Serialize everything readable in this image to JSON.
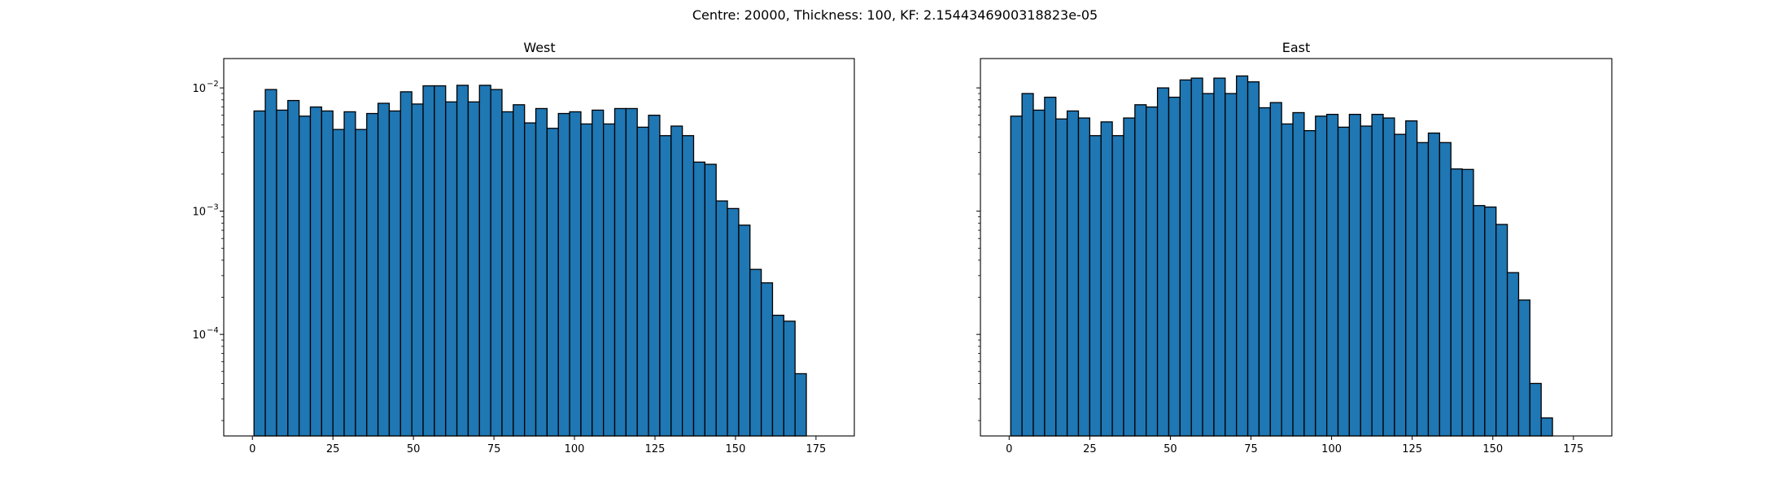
{
  "figure": {
    "suptitle": "Centre: 20000, Thickness: 100, KF: 2.1544346900318823e-05"
  },
  "chart_data": [
    {
      "type": "bar",
      "subtype": "histogram",
      "title": "West",
      "xlabel": "",
      "ylabel": "",
      "yscale": "log",
      "xlim": [
        -8.9,
        186.9
      ],
      "ylim": [
        1.5e-05,
        0.0173
      ],
      "xticks": [
        0,
        25,
        50,
        75,
        100,
        125,
        150,
        175
      ],
      "yticks": [
        {
          "value": 0.0001,
          "base": "10",
          "exp": "−4"
        },
        {
          "value": 0.001,
          "base": "10",
          "exp": "−3"
        },
        {
          "value": 0.01,
          "base": "10",
          "exp": "−2"
        }
      ],
      "bin_start": 0.5,
      "bin_width": 3.5,
      "values": [
        0.0065,
        0.0097,
        0.0066,
        0.0079,
        0.0059,
        0.007,
        0.0065,
        0.0046,
        0.0064,
        0.0046,
        0.0062,
        0.0075,
        0.0065,
        0.0093,
        0.0074,
        0.0104,
        0.0104,
        0.0077,
        0.0105,
        0.0077,
        0.0105,
        0.0097,
        0.0064,
        0.0073,
        0.0052,
        0.0068,
        0.0047,
        0.0062,
        0.0064,
        0.0051,
        0.0066,
        0.0051,
        0.0068,
        0.0068,
        0.0048,
        0.006,
        0.0041,
        0.0049,
        0.0041,
        0.0025,
        0.0024,
        0.00121,
        0.00105,
        0.00077,
        0.000337,
        0.000262,
        0.000143,
        0.000128,
        4.8e-05
      ],
      "grid": false,
      "legend": "none"
    },
    {
      "type": "bar",
      "subtype": "histogram",
      "title": "East",
      "xlabel": "",
      "ylabel": "",
      "yscale": "log",
      "xlim": [
        -8.9,
        186.9
      ],
      "ylim": [
        1.5e-05,
        0.0173
      ],
      "xticks": [
        0,
        25,
        50,
        75,
        100,
        125,
        150,
        175
      ],
      "yticks": [
        {
          "value": 0.0001,
          "base": "",
          "exp": ""
        },
        {
          "value": 0.001,
          "base": "",
          "exp": ""
        },
        {
          "value": 0.01,
          "base": "",
          "exp": ""
        }
      ],
      "bin_start": 0.5,
      "bin_width": 3.5,
      "values": [
        0.0059,
        0.009,
        0.0066,
        0.0084,
        0.0056,
        0.0065,
        0.0057,
        0.0041,
        0.0053,
        0.0041,
        0.0057,
        0.0073,
        0.007,
        0.01,
        0.0084,
        0.0116,
        0.012,
        0.009,
        0.012,
        0.009,
        0.0125,
        0.0112,
        0.0069,
        0.0076,
        0.0051,
        0.0063,
        0.0045,
        0.0059,
        0.0061,
        0.0048,
        0.0061,
        0.0049,
        0.0061,
        0.0057,
        0.0042,
        0.0054,
        0.0036,
        0.0043,
        0.0036,
        0.0022,
        0.00218,
        0.00111,
        0.00108,
        0.00078,
        0.000317,
        0.00019,
        4e-05,
        2.1e-05
      ],
      "grid": false,
      "legend": "none"
    }
  ]
}
